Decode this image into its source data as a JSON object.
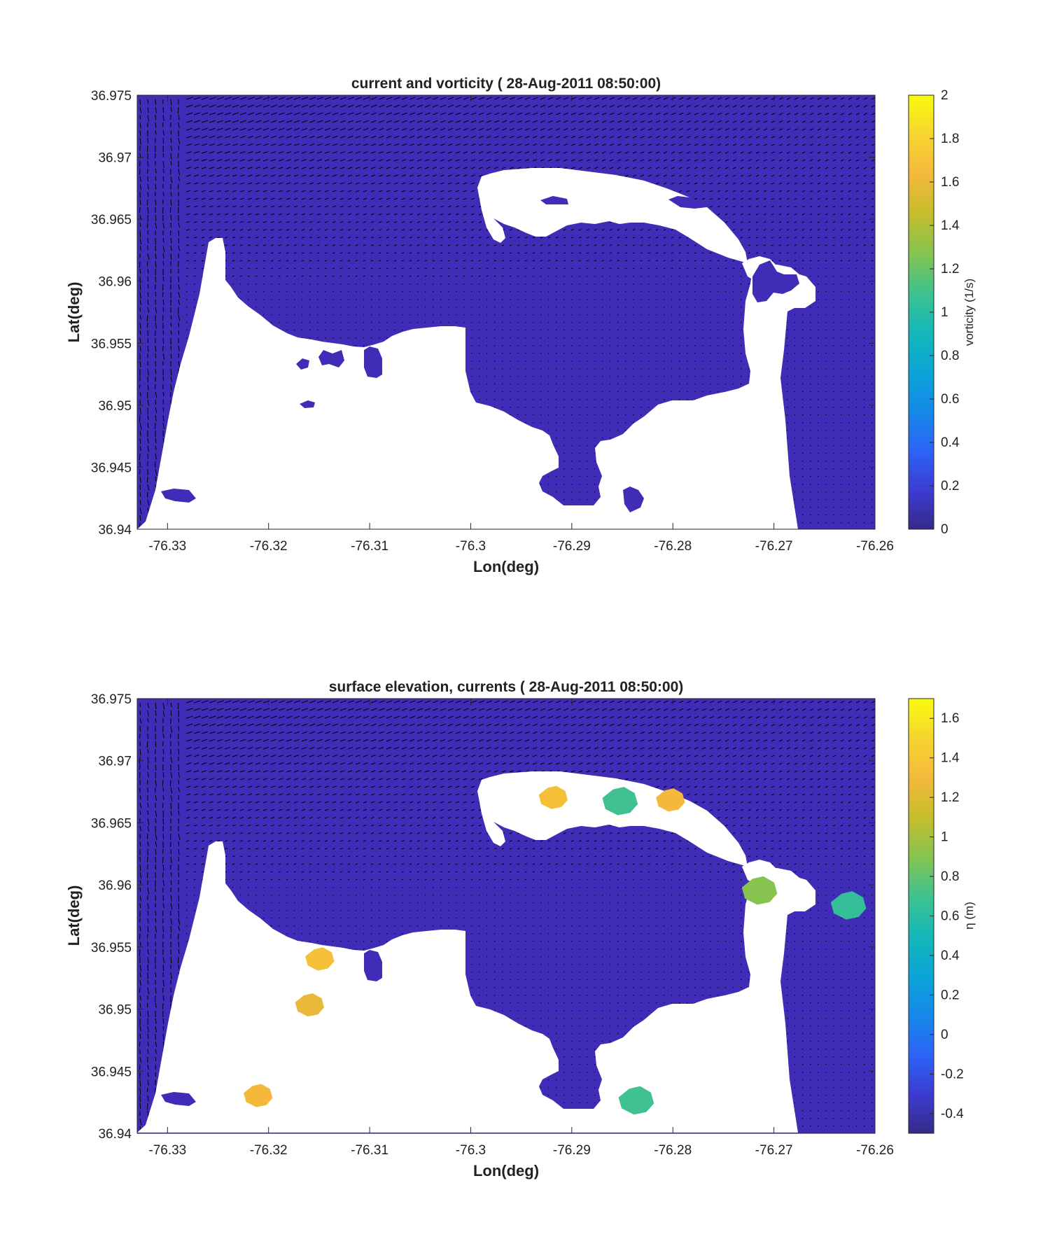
{
  "colors": {
    "water": "#3f2db8",
    "land": "#ffffff",
    "axis": "#262626",
    "arrow": "#000000",
    "parula": [
      "#352a87",
      "#3d3cd4",
      "#2c64f6",
      "#1589e8",
      "#0ba5d6",
      "#14b8b8",
      "#3fc28f",
      "#86c44f",
      "#c6bd2c",
      "#f4b93b",
      "#f6d52f",
      "#f9fb0e"
    ]
  },
  "icons": {
    "current_vectors": "arrow-icon"
  },
  "chart_data": [
    {
      "type": "heatmap",
      "title": "current and vorticity ( 28-Aug-2011 08:50:00)",
      "xlabel": "Lon(deg)",
      "ylabel": "Lat(deg)",
      "xlim": [
        -76.333,
        -76.26
      ],
      "ylim": [
        36.94,
        36.975
      ],
      "xticks": [
        "-76.33",
        "-76.32",
        "-76.31",
        "-76.3",
        "-76.29",
        "-76.28",
        "-76.27",
        "-76.26"
      ],
      "yticks": [
        "36.94",
        "36.945",
        "36.95",
        "36.955",
        "36.96",
        "36.965",
        "36.97",
        "36.975"
      ],
      "xtick_values": [
        -76.33,
        -76.32,
        -76.31,
        -76.3,
        -76.29,
        -76.28,
        -76.27,
        -76.26
      ],
      "ytick_values": [
        36.94,
        36.945,
        36.95,
        36.955,
        36.96,
        36.965,
        36.97,
        36.975
      ],
      "colorbar": {
        "label": "vorticity (1/s)",
        "range": [
          0,
          2
        ],
        "ticks": [
          "0",
          "0.2",
          "0.4",
          "0.6",
          "0.8",
          "1",
          "1.2",
          "1.4",
          "1.6",
          "1.8",
          "2"
        ],
        "tick_values": [
          0,
          0.2,
          0.4,
          0.6,
          0.8,
          1,
          1.2,
          1.4,
          1.6,
          1.8,
          2
        ]
      },
      "field_value": 0.05,
      "patches": []
    },
    {
      "type": "heatmap",
      "title": "surface elevation, currents ( 28-Aug-2011 08:50:00)",
      "xlabel": "Lon(deg)",
      "ylabel": "Lat(deg)",
      "xlim": [
        -76.333,
        -76.26
      ],
      "ylim": [
        36.94,
        36.975
      ],
      "xticks": [
        "-76.33",
        "-76.32",
        "-76.31",
        "-76.3",
        "-76.29",
        "-76.28",
        "-76.27",
        "-76.26"
      ],
      "yticks": [
        "36.94",
        "36.945",
        "36.95",
        "36.955",
        "36.96",
        "36.965",
        "36.97",
        "36.975"
      ],
      "xtick_values": [
        -76.33,
        -76.32,
        -76.31,
        -76.3,
        -76.29,
        -76.28,
        -76.27,
        -76.26
      ],
      "ytick_values": [
        36.94,
        36.945,
        36.95,
        36.955,
        36.96,
        36.965,
        36.97,
        36.975
      ],
      "colorbar": {
        "label": "η (m)",
        "range": [
          -0.5,
          1.7
        ],
        "ticks": [
          "-0.4",
          "-0.2",
          "0",
          "0.2",
          "0.4",
          "0.6",
          "0.8",
          "1",
          "1.2",
          "1.4",
          "1.6"
        ],
        "tick_values": [
          -0.4,
          -0.2,
          0,
          0.2,
          0.4,
          0.6,
          0.8,
          1,
          1.2,
          1.4,
          1.6
        ]
      },
      "field_value": -0.45,
      "patches": [
        {
          "lon": -76.2715,
          "lat": 36.9595,
          "value": 0.9
        },
        {
          "lon": -76.2837,
          "lat": 36.9426,
          "value": 0.7
        },
        {
          "lon": -76.2627,
          "lat": 36.9583,
          "value": 0.65
        },
        {
          "lon": -76.2803,
          "lat": 36.9668,
          "value": 1.3
        },
        {
          "lon": -76.2919,
          "lat": 36.967,
          "value": 1.35
        },
        {
          "lon": -76.2853,
          "lat": 36.9667,
          "value": 0.7
        },
        {
          "lon": -76.315,
          "lat": 36.954,
          "value": 1.35
        },
        {
          "lon": -76.316,
          "lat": 36.9503,
          "value": 1.25
        },
        {
          "lon": -76.3211,
          "lat": 36.943,
          "value": 1.3
        }
      ]
    }
  ]
}
